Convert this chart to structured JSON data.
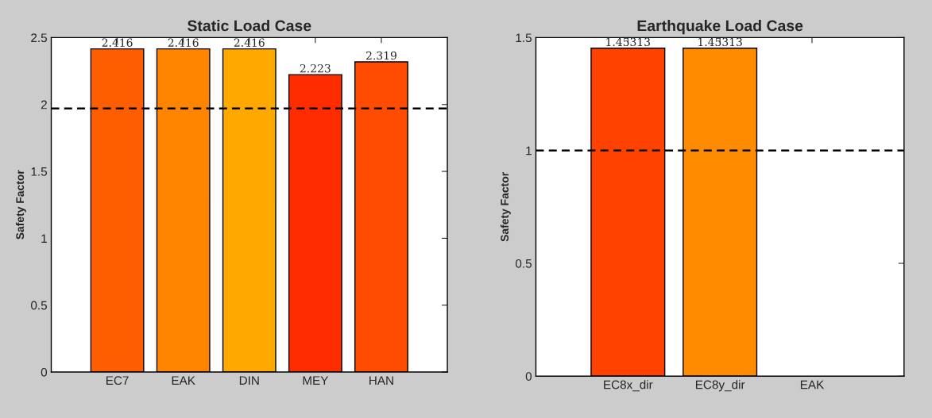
{
  "chart_data": [
    {
      "type": "bar",
      "title": "Static Load Case",
      "ylabel": "Safety Factor",
      "categories": [
        "EC7",
        "EAK",
        "DIN",
        "MEY",
        "HAN"
      ],
      "values": [
        2.416,
        2.416,
        2.416,
        2.223,
        2.319
      ],
      "colors": [
        "#ff5e00",
        "#ff8400",
        "#ffa800",
        "#ff2c00",
        "#ff4c00"
      ],
      "ylim": [
        0,
        2.5
      ],
      "yticks": [
        0,
        0.5,
        1,
        1.5,
        2,
        2.5
      ],
      "data_labels": true,
      "grid": false,
      "legend": false,
      "ref_lines": [
        {
          "axis": "y",
          "value": 1.97,
          "color": "#000000",
          "line_style": "dashed"
        }
      ]
    },
    {
      "type": "bar",
      "title": "Earthquake Load Case",
      "ylabel": "Safety Factor",
      "categories": [
        "EC8x_dir",
        "EC8y_dir",
        "EAK"
      ],
      "values": [
        1.45313,
        1.45313,
        null
      ],
      "colors": [
        "#ff4200",
        "#ff8c00",
        "#ffffff"
      ],
      "ylim": [
        0,
        1.5
      ],
      "yticks": [
        0,
        0.5,
        1,
        1.5
      ],
      "data_labels": true,
      "grid": false,
      "legend": false,
      "ref_lines": [
        {
          "axis": "y",
          "value": 1,
          "color": "#000000",
          "line_style": "dashed"
        }
      ]
    }
  ]
}
